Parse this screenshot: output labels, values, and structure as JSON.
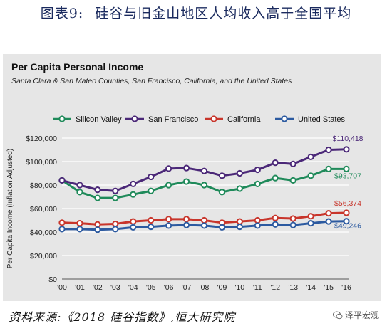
{
  "figure": {
    "number_label": "图表9:",
    "caption": "硅谷与旧金山地区人均收入高于全国平均"
  },
  "source": "资料来源:《2018 硅谷指数》,恒大研究院",
  "watermark": "泽平宏观",
  "colors": {
    "panel_bg": "#e6e6e6",
    "Silicon Valley": "#1f8a5a",
    "San Francisco": "#4b2878",
    "California": "#c8352b",
    "United States": "#2c5aa0"
  },
  "chart_data": {
    "type": "line",
    "title": "Per Capita Personal Income",
    "subtitle": "Santa Clara & San Mateo Counties, San Francisco, California, and the United States",
    "ylabel": "Per Capita Income (Inflation Adjusted)",
    "xlabel": "",
    "x": [
      "'00",
      "'01",
      "'02",
      "'03",
      "'04",
      "'05",
      "'06",
      "'07",
      "'08",
      "'09",
      "'10",
      "'11",
      "'12",
      "'13",
      "'14",
      "'15",
      "'16"
    ],
    "ylim": [
      0,
      120000
    ],
    "yticks": [
      "$0",
      "$20,000",
      "$40,000",
      "$60,000",
      "$80,000",
      "$100,000",
      "$120,000"
    ],
    "grid": true,
    "legend": "top",
    "series": [
      {
        "name": "Silicon Valley",
        "values": [
          84000,
          74000,
          69000,
          69000,
          72000,
          75000,
          80000,
          83000,
          80000,
          74000,
          77000,
          81000,
          86000,
          84000,
          88000,
          93700,
          93707
        ],
        "end_label": "$93,707"
      },
      {
        "name": "San Francisco",
        "values": [
          84000,
          80000,
          76000,
          75000,
          81000,
          87000,
          94000,
          94500,
          92000,
          88000,
          90000,
          93000,
          99000,
          98000,
          104000,
          110000,
          110418
        ],
        "end_label": "$110,418"
      },
      {
        "name": "California",
        "values": [
          48000,
          47500,
          46500,
          47000,
          49000,
          50000,
          51000,
          51000,
          50000,
          48000,
          49000,
          50000,
          52000,
          51500,
          53500,
          56000,
          56374
        ],
        "end_label": "$56,374"
      },
      {
        "name": "United States",
        "values": [
          42500,
          42500,
          42000,
          42500,
          44000,
          44500,
          45500,
          46000,
          45500,
          44000,
          44500,
          45500,
          46500,
          46000,
          47500,
          49000,
          49246
        ],
        "end_label": "$49,246"
      }
    ]
  }
}
